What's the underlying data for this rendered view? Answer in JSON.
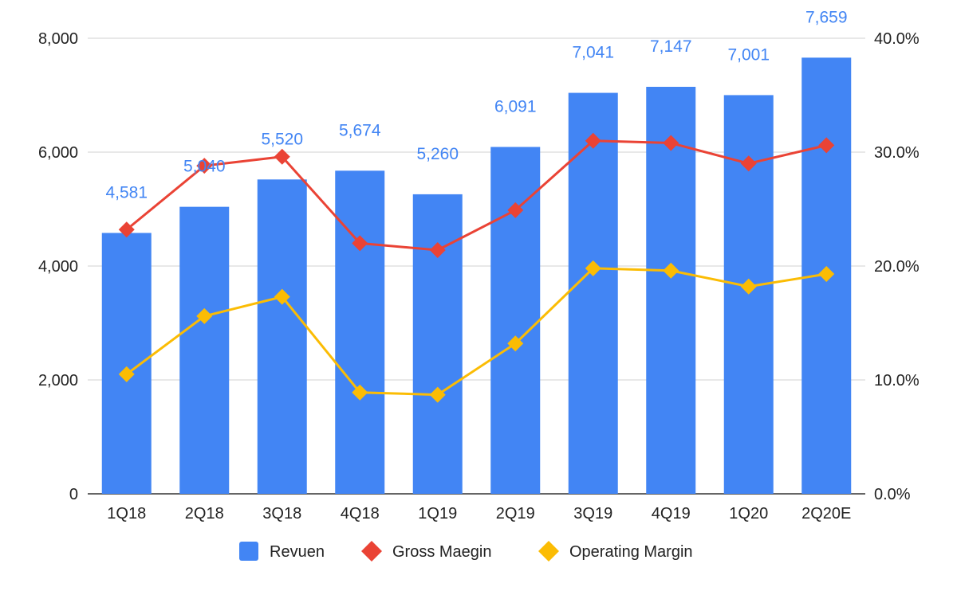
{
  "chart_data": {
    "type": "bar",
    "categories": [
      "1Q18",
      "2Q18",
      "3Q18",
      "4Q18",
      "1Q19",
      "2Q19",
      "3Q19",
      "4Q19",
      "1Q20",
      "2Q20E"
    ],
    "series": [
      {
        "name": "Revuen",
        "type": "bar",
        "axis": "left",
        "color": "#4285f4",
        "values": [
          4581,
          5040,
          5520,
          5674,
          5260,
          6091,
          7041,
          7147,
          7001,
          7659
        ],
        "data_labels": [
          "4,581",
          "5,040",
          "5,520",
          "5,674",
          "5,260",
          "6,091",
          "7,041",
          "7,147",
          "7,001",
          "7,659"
        ]
      },
      {
        "name": "Gross Maegin",
        "type": "line",
        "axis": "right",
        "marker": "diamond",
        "color": "#ea4335",
        "values": [
          23.2,
          28.8,
          29.6,
          22.0,
          21.4,
          24.9,
          31.0,
          30.8,
          29.0,
          30.6
        ]
      },
      {
        "name": "Operating Margin",
        "type": "line",
        "axis": "right",
        "marker": "diamond",
        "color": "#fbbc04",
        "values": [
          10.5,
          15.6,
          17.3,
          8.9,
          8.7,
          13.2,
          19.8,
          19.6,
          18.2,
          19.3
        ]
      }
    ],
    "left_axis": {
      "ylim": [
        0,
        8000
      ],
      "ticks": [
        0,
        2000,
        4000,
        6000,
        8000
      ],
      "tick_labels": [
        "0",
        "2,000",
        "4,000",
        "6,000",
        "8,000"
      ]
    },
    "right_axis": {
      "ylim": [
        0,
        40
      ],
      "ticks": [
        0,
        10,
        20,
        30,
        40
      ],
      "tick_labels": [
        "0.0%",
        "10.0%",
        "20.0%",
        "30.0%",
        "40.0%"
      ]
    },
    "grid": true,
    "legend_position": "bottom",
    "title": "",
    "xlabel": "",
    "ylabel": ""
  }
}
